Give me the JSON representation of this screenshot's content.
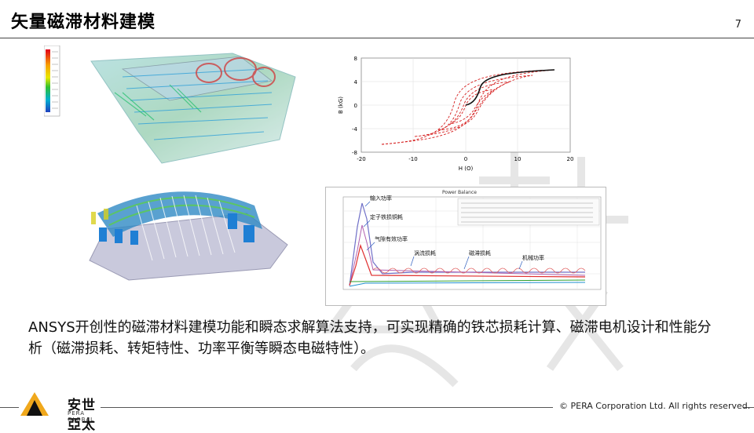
{
  "slide": {
    "title": "矢量磁滞材料建模",
    "page_number": "7",
    "body": "ANSYS开创性的磁滞材料建模功能和瞬态求解算法支持，可实现精确的铁芯损耗计算、磁滞电机设计和性能分析（磁滞损耗、转矩特性、功率平衡等瞬态电磁特性）。"
  },
  "hysteresis_chart": {
    "ylabel": "B (kG)",
    "xlabel": "H (O)",
    "x_ticks": [
      "-20",
      "-10",
      "0",
      "10",
      "20"
    ],
    "y_ticks": [
      "8",
      "4",
      "0",
      "-4",
      "-8"
    ]
  },
  "power_chart": {
    "title": "Power Balance",
    "labels": [
      "输入功率",
      "定子铁损铜耗",
      "气隙有效功率",
      "涡流损耗",
      "磁滞损耗",
      "机械功率"
    ]
  },
  "footer": {
    "logo_cn": "安世亞太",
    "logo_en": "PERA GLOBAL",
    "copyright": "© PERA Corporation Ltd. All rights reserved."
  },
  "colors": {
    "logo_yellow": "#f0a81c",
    "hysteresis_major": "#d62020",
    "hysteresis_initial": "#111111"
  }
}
